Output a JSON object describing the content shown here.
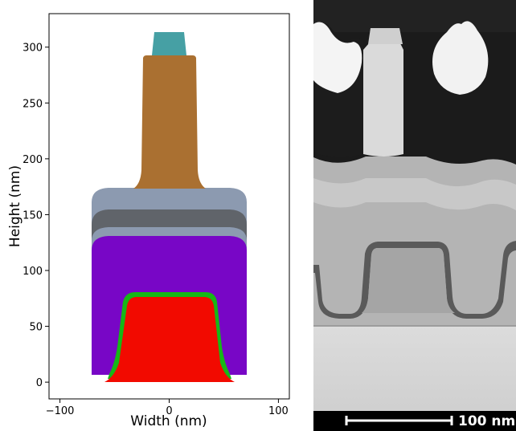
{
  "left_panel": {
    "xlabel": "Width (nm)",
    "ylabel": "Height (nm)",
    "xlim": [
      -110,
      110
    ],
    "ylim": [
      -15,
      330
    ],
    "x_ticks": [
      -100,
      0,
      100
    ],
    "y_ticks": [
      0,
      50,
      100,
      150,
      200,
      250,
      300
    ],
    "colors": {
      "fin_red": "#f20a00",
      "liner_green": "#16b816",
      "fill_purple": "#7806c6",
      "light_gray": "#8c9ab0",
      "dark_gray": "#60646a",
      "gate_brown": "#aa7031",
      "cap_teal": "#46a0a4"
    }
  },
  "right_panel": {
    "scale_bar_label": "100 nm",
    "colors": {
      "bar_background": "#000000",
      "bar_text": "#ffffff"
    }
  }
}
